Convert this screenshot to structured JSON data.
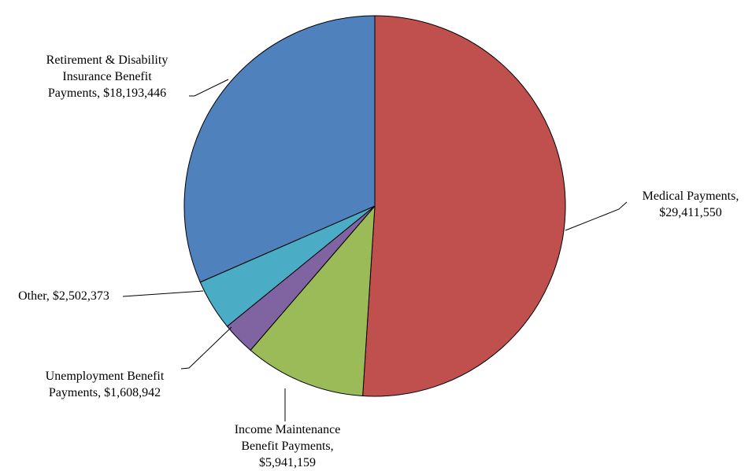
{
  "chart_data": {
    "type": "pie",
    "title": "",
    "legend": "none",
    "start_angle_deg": 0,
    "direction": "clockwise",
    "slices": [
      {
        "name": "Medical Payments",
        "value": 29411550,
        "value_label": "$29,411,550",
        "color": "#C0504D",
        "label_lines": [
          "Medical Payments,",
          "$29,411,550"
        ]
      },
      {
        "name": "Income Maintenance Benefit Payments",
        "value": 5941159,
        "value_label": "$5,941,159",
        "color": "#9BBB59",
        "label_lines": [
          "Income Maintenance",
          "Benefit Payments,",
          "$5,941,159"
        ]
      },
      {
        "name": "Unemployment Benefit Payments",
        "value": 1608942,
        "value_label": "$1,608,942",
        "color": "#8064A2",
        "label_lines": [
          "Unemployment  Benefit",
          "Payments,  $1,608,942"
        ]
      },
      {
        "name": "Other",
        "value": 2502373,
        "value_label": "$2,502,373",
        "color": "#4BACC6",
        "label_lines": [
          "Other,  $2,502,373"
        ]
      },
      {
        "name": "Retirement & Disability Insurance Benefit Payments",
        "value": 18193446,
        "value_label": "$18,193,446",
        "color": "#4F81BD",
        "label_lines": [
          "Retirement & Disability",
          "Insurance Benefit",
          "Payments,  $18,193,446"
        ]
      }
    ]
  }
}
